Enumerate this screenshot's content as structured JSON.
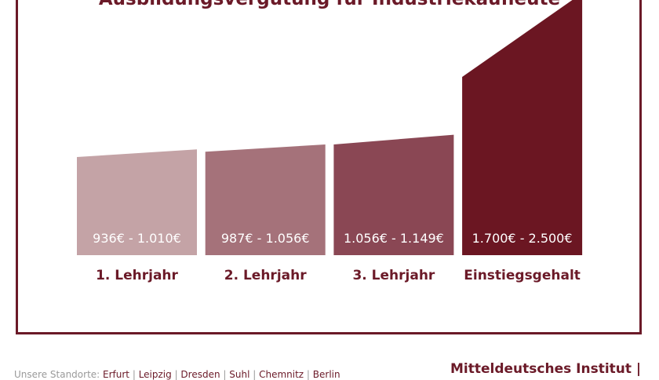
{
  "title": "Ausbildungsvergütung für Industriekaufleute",
  "chart_data": {
    "type": "bar",
    "categories": [
      "1. Lehrjahr",
      "2. Lehrjahr",
      "3. Lehrjahr",
      "Einstiegsgehalt"
    ],
    "series": [
      {
        "ranges": [
          [
            936,
            1010
          ],
          [
            987,
            1056
          ],
          [
            1056,
            1149
          ],
          [
            1700,
            2500
          ]
        ],
        "labels": [
          "936€ - 1.010€",
          "987€ - 1.056€",
          "1.056€ - 1.149€",
          "1.700€ - 2.500€"
        ],
        "colors": [
          "#c4a3a6",
          "#a5727a",
          "#8a4754",
          "#6b1622"
        ]
      }
    ],
    "legend": "none",
    "grid": false
  },
  "footer": {
    "locations_prefix": "Unsere Standorte:",
    "locations": [
      "Erfurt",
      "Leipzig",
      "Dresden",
      "Suhl",
      "Chemnitz",
      "Berlin"
    ],
    "brand": "Mitteldeutsches Institut |"
  }
}
